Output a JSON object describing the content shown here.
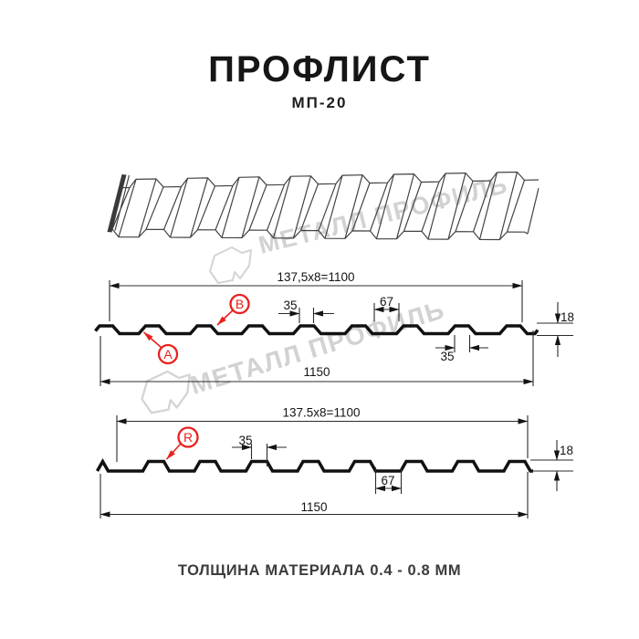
{
  "header": {
    "title": "ПРОФЛИСТ",
    "subtitle": "МП-20"
  },
  "footer": {
    "caption": "ТОЛЩИНА МАТЕРИАЛА 0.4 - 0.8 ММ"
  },
  "watermark": {
    "text": "МЕТАЛЛ ПРОФИЛЬ",
    "color": "#d2d2d2"
  },
  "colors": {
    "ink": "#141414",
    "accent_red": "#e8211d",
    "sketch_line": "#434343",
    "watermark_gray": "#d2d2d2"
  },
  "profile_top": {
    "dim_width_formula": "137,5x8=1100",
    "dim_rib_top": "35",
    "dim_trough": "67",
    "dim_height": "18",
    "dim_rib_bottom": "35",
    "dim_total_width": "1150",
    "label_a": "A",
    "label_b": "B"
  },
  "profile_bottom": {
    "dim_width_formula": "137.5x8=1100",
    "dim_rib_top": "35",
    "dim_height": "18",
    "dim_trough": "67",
    "dim_total_width": "1150",
    "label_r": "R"
  }
}
